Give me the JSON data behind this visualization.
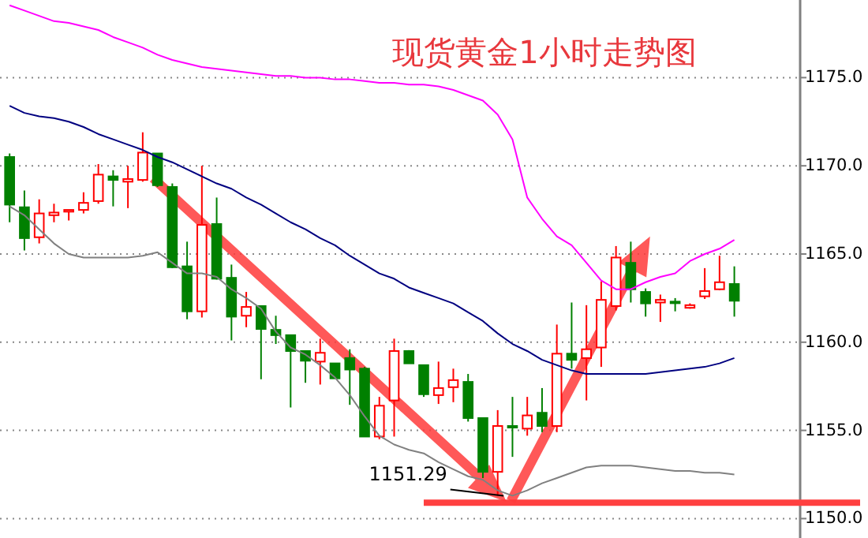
{
  "chart_data": {
    "type": "candlestick",
    "title": "现货黄金1小时走势图",
    "categories": [
      null,
      null,
      null,
      null,
      null,
      null,
      null,
      null,
      null,
      null,
      null,
      null,
      null,
      null,
      null,
      null,
      null,
      null,
      null,
      null,
      null,
      null,
      null,
      null,
      null,
      null,
      null,
      null,
      null,
      null,
      null,
      null,
      null,
      null,
      null,
      null,
      null,
      null,
      null,
      null,
      null,
      null,
      null,
      null,
      null,
      null,
      null,
      null,
      null,
      null
    ],
    "ohlc": [
      [
        1170.5,
        1170.7,
        1166.8,
        1167.8
      ],
      [
        1167.65,
        1168.6,
        1165.2,
        1165.9
      ],
      [
        1165.95,
        1168.1,
        1165.6,
        1167.3
      ],
      [
        1167.2,
        1167.85,
        1166.8,
        1167.35
      ],
      [
        1167.4,
        1167.5,
        1166.9,
        1167.5
      ],
      [
        1167.5,
        1168.5,
        1167.3,
        1167.9
      ],
      [
        1168.0,
        1170.1,
        1167.85,
        1169.5
      ],
      [
        1169.4,
        1169.75,
        1167.7,
        1169.2
      ],
      [
        1169.1,
        1170.0,
        1167.6,
        1169.25
      ],
      [
        1169.2,
        1171.9,
        1169.1,
        1170.75
      ],
      [
        1170.7,
        1170.7,
        1168.8,
        1168.9
      ],
      [
        1168.8,
        1169.0,
        1164.2,
        1164.25
      ],
      [
        1164.3,
        1165.7,
        1161.3,
        1161.75
      ],
      [
        1161.75,
        1170.0,
        1161.4,
        1166.65
      ],
      [
        1166.7,
        1168.2,
        1163.55,
        1163.6
      ],
      [
        1163.65,
        1164.4,
        1160.1,
        1161.45
      ],
      [
        1161.5,
        1162.85,
        1160.85,
        1162.0
      ],
      [
        1162.05,
        1162.05,
        1157.9,
        1160.75
      ],
      [
        1160.7,
        1161.5,
        1159.9,
        1160.4
      ],
      [
        1160.4,
        1160.4,
        1156.3,
        1159.5
      ],
      [
        1159.5,
        1159.5,
        1157.7,
        1158.95
      ],
      [
        1158.9,
        1160.2,
        1157.6,
        1159.4
      ],
      [
        1158.8,
        1158.8,
        1157.95,
        1157.95
      ],
      [
        1159.1,
        1159.6,
        1156.45,
        1158.45
      ],
      [
        1158.5,
        1158.6,
        1154.65,
        1154.65
      ],
      [
        1154.65,
        1156.9,
        1154.5,
        1156.4
      ],
      [
        1156.7,
        1160.2,
        1154.65,
        1159.5
      ],
      [
        1159.5,
        1159.55,
        1158.8,
        1158.8
      ],
      [
        1158.7,
        1158.7,
        1156.9,
        1157.05
      ],
      [
        1157.0,
        1158.9,
        1156.5,
        1157.4
      ],
      [
        1157.45,
        1158.5,
        1156.6,
        1157.85
      ],
      [
        1157.75,
        1158.2,
        1155.5,
        1155.7
      ],
      [
        1155.7,
        1155.7,
        1152.3,
        1152.65
      ],
      [
        1152.65,
        1156.15,
        1151.29,
        1155.25
      ],
      [
        1155.25,
        1156.9,
        1153.5,
        1155.2
      ],
      [
        1155.1,
        1156.9,
        1154.7,
        1155.85
      ],
      [
        1156.0,
        1157.4,
        1154.9,
        1155.25
      ],
      [
        1155.25,
        1161.0,
        1154.9,
        1159.35
      ],
      [
        1159.35,
        1162.25,
        1158.5,
        1159.0
      ],
      [
        1159.1,
        1162.1,
        1156.7,
        1159.6
      ],
      [
        1159.7,
        1163.45,
        1158.6,
        1162.4
      ],
      [
        1162.05,
        1165.45,
        1161.8,
        1164.8
      ],
      [
        1164.5,
        1165.7,
        1162.25,
        1163.0
      ],
      [
        1162.85,
        1163.05,
        1161.45,
        1162.2
      ],
      [
        1162.25,
        1162.7,
        1161.15,
        1162.4
      ],
      [
        1162.3,
        1162.5,
        1161.75,
        1162.25
      ],
      [
        1161.95,
        1162.2,
        1161.9,
        1162.1
      ],
      [
        1162.6,
        1164.2,
        1162.45,
        1162.9
      ],
      [
        1163.0,
        1164.9,
        1162.95,
        1163.4
      ],
      [
        1163.3,
        1164.3,
        1161.45,
        1162.35
      ]
    ],
    "colors": [
      "#008000",
      "#008000",
      "#ff0000",
      "#ff0000",
      "#ff0000",
      "#ff0000",
      "#ff0000",
      "#008000",
      "#ff0000",
      "#ff0000",
      "#008000",
      "#008000",
      "#008000",
      "#ff0000",
      "#008000",
      "#008000",
      "#ff0000",
      "#008000",
      "#008000",
      "#008000",
      "#008000",
      "#ff0000",
      "#008000",
      "#008000",
      "#008000",
      "#ff0000",
      "#ff0000",
      "#008000",
      "#008000",
      "#ff0000",
      "#ff0000",
      "#008000",
      "#008000",
      "#ff0000",
      "#008000",
      "#ff0000",
      "#008000",
      "#ff0000",
      "#008000",
      "#ff0000",
      "#ff0000",
      "#ff0000",
      "#008000",
      "#008000",
      "#ff0000",
      "#008000",
      "#ff0000",
      "#ff0000",
      "#ff0000",
      "#008000"
    ],
    "series": [
      {
        "type": "line",
        "color": "#ff00ff",
        "values": [
          1179.1,
          1178.8,
          1178.5,
          1178.2,
          1178.1,
          1177.9,
          1177.7,
          1177.3,
          1177.0,
          1176.7,
          1176.3,
          1176.0,
          1175.8,
          1175.6,
          1175.5,
          1175.4,
          1175.3,
          1175.2,
          1175.1,
          1175.1,
          1175.0,
          1175.0,
          1174.9,
          1174.9,
          1174.8,
          1174.7,
          1174.7,
          1174.6,
          1174.6,
          1174.5,
          1174.3,
          1174.0,
          1173.7,
          1172.9,
          1171.5,
          1168.2,
          1167.0,
          1166.0,
          1165.5,
          1164.5,
          1163.5,
          1163.0,
          1163.0,
          1163.4,
          1163.7,
          1163.9,
          1164.6,
          1165.0,
          1165.3,
          1165.8
        ]
      },
      {
        "type": "line",
        "color": "#000080",
        "values": [
          1173.4,
          1173.0,
          1172.8,
          1172.7,
          1172.5,
          1172.2,
          1171.8,
          1171.5,
          1171.2,
          1170.9,
          1170.5,
          1170.2,
          1169.8,
          1169.4,
          1169.0,
          1168.7,
          1168.2,
          1167.8,
          1167.3,
          1166.8,
          1166.4,
          1165.9,
          1165.5,
          1164.9,
          1164.4,
          1163.9,
          1163.6,
          1163.1,
          1162.8,
          1162.5,
          1162.2,
          1161.7,
          1161.2,
          1160.5,
          1159.9,
          1159.5,
          1159.0,
          1158.7,
          1158.4,
          1158.2,
          1158.2,
          1158.2,
          1158.2,
          1158.2,
          1158.3,
          1158.4,
          1158.5,
          1158.6,
          1158.8,
          1159.1
        ]
      },
      {
        "type": "line",
        "color": "#808080",
        "values": [
          1167.7,
          1167.2,
          1166.4,
          1165.6,
          1165.0,
          1164.8,
          1164.8,
          1164.8,
          1164.8,
          1164.9,
          1165.1,
          1164.5,
          1163.9,
          1163.9,
          1163.7,
          1163.0,
          1162.5,
          1161.9,
          1160.6,
          1159.7,
          1159.3,
          1158.7,
          1158.0,
          1157.0,
          1155.8,
          1154.7,
          1154.2,
          1153.9,
          1153.7,
          1153.2,
          1152.8,
          1152.4,
          1152.2,
          1151.6,
          1151.3,
          1151.6,
          1152.0,
          1152.3,
          1152.6,
          1152.9,
          1153.0,
          1153.0,
          1153.0,
          1152.9,
          1152.8,
          1152.7,
          1152.7,
          1152.6,
          1152.6,
          1152.5
        ]
      }
    ],
    "ylim": [
      1148.9,
      1179.4
    ],
    "yticks": [
      {
        "value": 1150,
        "label": "1150.0"
      },
      {
        "value": 1155,
        "label": "1155.0"
      },
      {
        "value": 1160,
        "label": "1160.0"
      },
      {
        "value": 1165,
        "label": "1165.0"
      },
      {
        "value": 1170,
        "label": "1170.0"
      },
      {
        "value": 1175,
        "label": "1175.0"
      }
    ],
    "grid": "y",
    "ref_lines": [
      {
        "axis": "y",
        "value": 1150.9,
        "color": "#ff4040"
      }
    ],
    "annotations": [
      "1151.29"
    ]
  }
}
